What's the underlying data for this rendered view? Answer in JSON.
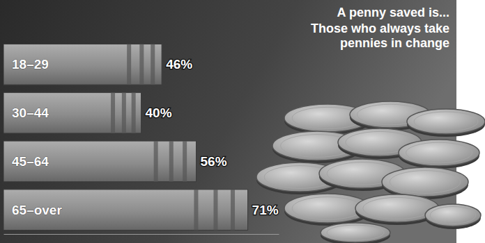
{
  "chart_data": {
    "type": "bar",
    "orientation": "horizontal",
    "title": "A penny saved is...",
    "subtitle": "Those who always take pennies in change",
    "categories": [
      "18–29",
      "30–44",
      "45–64",
      "65–over"
    ],
    "values": [
      46,
      40,
      56,
      71
    ],
    "value_labels": [
      "46%",
      "40%",
      "56%",
      "71%"
    ],
    "color": "#8c8c8c",
    "xlim": [
      0,
      80
    ],
    "data_labels": true,
    "tick_labels": "y",
    "grid": false
  }
}
